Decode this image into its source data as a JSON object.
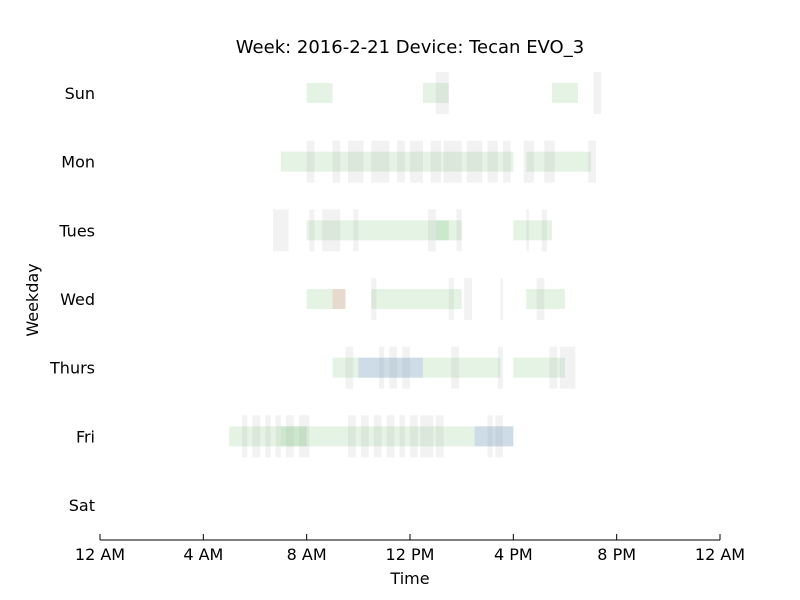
{
  "chart_data": {
    "type": "timeline",
    "title": "Week: 2016-2-21  Device: Tecan EVO_3",
    "xlabel": "Time",
    "ylabel": "Weekday",
    "xlim_hours": [
      0,
      24
    ],
    "x_ticks": [
      {
        "hour": 0,
        "label": "12 AM"
      },
      {
        "hour": 4,
        "label": "4 AM"
      },
      {
        "hour": 8,
        "label": "8 AM"
      },
      {
        "hour": 12,
        "label": "12 PM"
      },
      {
        "hour": 16,
        "label": "4 PM"
      },
      {
        "hour": 20,
        "label": "8 PM"
      },
      {
        "hour": 24,
        "label": "12 AM"
      }
    ],
    "categories": [
      "Sun",
      "Mon",
      "Tues",
      "Wed",
      "Thurs",
      "Fri",
      "Sat"
    ],
    "grid": false,
    "colors": {
      "green": "#2ca02c",
      "gray": "#999999",
      "blue": "#3344ff",
      "red": "#ff3333"
    },
    "series": [
      {
        "day": "Sun",
        "bands": [
          {
            "start": 8.0,
            "end": 9.0,
            "color": "green",
            "kind": "wide"
          },
          {
            "start": 12.5,
            "end": 13.5,
            "color": "green",
            "kind": "wide"
          },
          {
            "start": 17.5,
            "end": 18.5,
            "color": "green",
            "kind": "wide"
          },
          {
            "start": 13.0,
            "end": 13.5,
            "color": "gray",
            "kind": "tall"
          },
          {
            "start": 19.1,
            "end": 19.4,
            "color": "gray",
            "kind": "tall"
          }
        ]
      },
      {
        "day": "Mon",
        "bands": [
          {
            "start": 7.0,
            "end": 16.0,
            "color": "green",
            "kind": "wide"
          },
          {
            "start": 16.5,
            "end": 19.0,
            "color": "green",
            "kind": "wide"
          },
          {
            "start": 8.0,
            "end": 8.3,
            "color": "gray",
            "kind": "tall"
          },
          {
            "start": 9.0,
            "end": 9.3,
            "color": "gray",
            "kind": "tall"
          },
          {
            "start": 9.6,
            "end": 10.2,
            "color": "gray",
            "kind": "tall"
          },
          {
            "start": 10.5,
            "end": 11.2,
            "color": "gray",
            "kind": "tall"
          },
          {
            "start": 11.5,
            "end": 11.8,
            "color": "gray",
            "kind": "tall"
          },
          {
            "start": 12.0,
            "end": 12.5,
            "color": "gray",
            "kind": "tall"
          },
          {
            "start": 12.8,
            "end": 13.2,
            "color": "gray",
            "kind": "tall"
          },
          {
            "start": 13.3,
            "end": 14.0,
            "color": "gray",
            "kind": "tall"
          },
          {
            "start": 14.2,
            "end": 14.8,
            "color": "gray",
            "kind": "tall"
          },
          {
            "start": 15.0,
            "end": 15.4,
            "color": "gray",
            "kind": "tall"
          },
          {
            "start": 15.6,
            "end": 15.9,
            "color": "gray",
            "kind": "tall"
          },
          {
            "start": 16.4,
            "end": 16.8,
            "color": "gray",
            "kind": "tall"
          },
          {
            "start": 17.2,
            "end": 17.6,
            "color": "gray",
            "kind": "tall"
          },
          {
            "start": 18.9,
            "end": 19.2,
            "color": "gray",
            "kind": "tall"
          }
        ]
      },
      {
        "day": "Tues",
        "bands": [
          {
            "start": 8.0,
            "end": 14.0,
            "color": "green",
            "kind": "wide"
          },
          {
            "start": 13.0,
            "end": 13.5,
            "color": "green",
            "kind": "wide"
          },
          {
            "start": 16.0,
            "end": 17.5,
            "color": "green",
            "kind": "wide"
          },
          {
            "start": 6.7,
            "end": 7.3,
            "color": "gray",
            "kind": "tall"
          },
          {
            "start": 8.1,
            "end": 8.3,
            "color": "gray",
            "kind": "tall"
          },
          {
            "start": 8.6,
            "end": 9.3,
            "color": "gray",
            "kind": "tall"
          },
          {
            "start": 9.8,
            "end": 10.0,
            "color": "gray",
            "kind": "tall"
          },
          {
            "start": 12.7,
            "end": 13.0,
            "color": "gray",
            "kind": "tall"
          },
          {
            "start": 13.8,
            "end": 14.0,
            "color": "gray",
            "kind": "tall"
          },
          {
            "start": 16.5,
            "end": 16.6,
            "color": "gray",
            "kind": "tall"
          },
          {
            "start": 17.1,
            "end": 17.3,
            "color": "gray",
            "kind": "tall"
          }
        ]
      },
      {
        "day": "Wed",
        "bands": [
          {
            "start": 8.0,
            "end": 9.5,
            "color": "green",
            "kind": "wide"
          },
          {
            "start": 10.5,
            "end": 14.0,
            "color": "green",
            "kind": "wide"
          },
          {
            "start": 16.5,
            "end": 18.0,
            "color": "green",
            "kind": "wide"
          },
          {
            "start": 9.0,
            "end": 9.5,
            "color": "red",
            "kind": "wide"
          },
          {
            "start": 10.5,
            "end": 10.7,
            "color": "gray",
            "kind": "tall"
          },
          {
            "start": 13.5,
            "end": 13.7,
            "color": "gray",
            "kind": "tall"
          },
          {
            "start": 14.1,
            "end": 14.4,
            "color": "gray",
            "kind": "tall"
          },
          {
            "start": 15.5,
            "end": 15.6,
            "color": "gray",
            "kind": "tall"
          },
          {
            "start": 16.9,
            "end": 17.2,
            "color": "gray",
            "kind": "tall"
          }
        ]
      },
      {
        "day": "Thurs",
        "bands": [
          {
            "start": 9.0,
            "end": 15.5,
            "color": "green",
            "kind": "wide"
          },
          {
            "start": 16.0,
            "end": 18.0,
            "color": "green",
            "kind": "wide"
          },
          {
            "start": 10.0,
            "end": 12.5,
            "color": "blue",
            "kind": "wide"
          },
          {
            "start": 9.5,
            "end": 9.8,
            "color": "gray",
            "kind": "tall"
          },
          {
            "start": 10.8,
            "end": 11.0,
            "color": "gray",
            "kind": "tall"
          },
          {
            "start": 11.2,
            "end": 11.5,
            "color": "gray",
            "kind": "tall"
          },
          {
            "start": 11.7,
            "end": 12.0,
            "color": "gray",
            "kind": "tall"
          },
          {
            "start": 13.6,
            "end": 13.9,
            "color": "gray",
            "kind": "tall"
          },
          {
            "start": 15.4,
            "end": 15.6,
            "color": "gray",
            "kind": "tall"
          },
          {
            "start": 17.4,
            "end": 17.7,
            "color": "gray",
            "kind": "tall"
          },
          {
            "start": 17.8,
            "end": 18.4,
            "color": "gray",
            "kind": "tall"
          }
        ]
      },
      {
        "day": "Fri",
        "bands": [
          {
            "start": 5.0,
            "end": 16.0,
            "color": "green",
            "kind": "wide"
          },
          {
            "start": 7.0,
            "end": 8.0,
            "color": "green",
            "kind": "wide"
          },
          {
            "start": 14.5,
            "end": 16.0,
            "color": "blue",
            "kind": "wide"
          },
          {
            "start": 5.5,
            "end": 5.7,
            "color": "gray",
            "kind": "tall"
          },
          {
            "start": 5.9,
            "end": 6.2,
            "color": "gray",
            "kind": "tall"
          },
          {
            "start": 6.4,
            "end": 6.6,
            "color": "gray",
            "kind": "tall"
          },
          {
            "start": 6.8,
            "end": 7.0,
            "color": "gray",
            "kind": "tall"
          },
          {
            "start": 7.2,
            "end": 7.5,
            "color": "gray",
            "kind": "tall"
          },
          {
            "start": 7.7,
            "end": 8.1,
            "color": "gray",
            "kind": "tall"
          },
          {
            "start": 9.6,
            "end": 9.9,
            "color": "gray",
            "kind": "tall"
          },
          {
            "start": 10.1,
            "end": 10.4,
            "color": "gray",
            "kind": "tall"
          },
          {
            "start": 10.6,
            "end": 10.9,
            "color": "gray",
            "kind": "tall"
          },
          {
            "start": 11.1,
            "end": 11.4,
            "color": "gray",
            "kind": "tall"
          },
          {
            "start": 11.6,
            "end": 11.8,
            "color": "gray",
            "kind": "tall"
          },
          {
            "start": 12.0,
            "end": 12.3,
            "color": "gray",
            "kind": "tall"
          },
          {
            "start": 12.4,
            "end": 12.9,
            "color": "gray",
            "kind": "tall"
          },
          {
            "start": 13.0,
            "end": 13.3,
            "color": "gray",
            "kind": "tall"
          },
          {
            "start": 15.0,
            "end": 15.2,
            "color": "gray",
            "kind": "tall"
          },
          {
            "start": 15.3,
            "end": 15.6,
            "color": "gray",
            "kind": "tall"
          }
        ]
      },
      {
        "day": "Sat",
        "bands": []
      }
    ]
  }
}
